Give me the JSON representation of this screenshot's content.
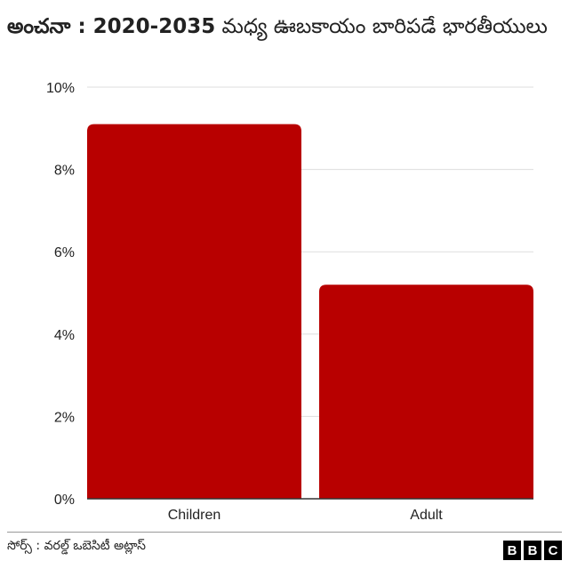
{
  "title": {
    "bold": "అంచనా : 2020-2035",
    "rest": " మధ్య ఊబకాయం బారిపడే భారతీయులు"
  },
  "source": "సోర్స్ : వరల్డ్ ఒబెసిటీ అట్లాస్",
  "logo": [
    "B",
    "B",
    "C"
  ],
  "chart_data": {
    "type": "bar",
    "title": "అంచనా : 2020-2035 మధ్య ఊబకాయం బారిపడే భారతీయులు",
    "categories": [
      "Children",
      "Adult"
    ],
    "values": [
      9.1,
      5.2
    ],
    "ylim": [
      0,
      10
    ],
    "yticks": [
      "0%",
      "2%",
      "4%",
      "6%",
      "8%",
      "10%"
    ],
    "ytick_values": [
      0,
      2,
      4,
      6,
      8,
      10
    ],
    "grid": true,
    "bar_color": "#b80000"
  }
}
